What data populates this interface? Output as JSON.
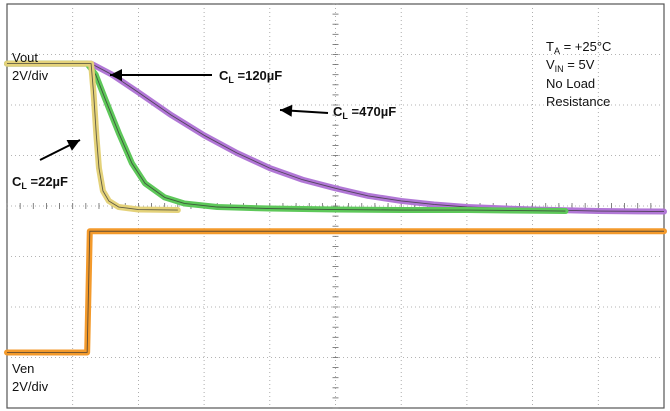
{
  "chart_data": {
    "type": "line",
    "xlim": [
      0,
      10
    ],
    "ylim": [
      0,
      8
    ],
    "grid": true,
    "series": [
      {
        "name": "CL=22µF",
        "color": "#e4d27a",
        "points": [
          [
            0,
            6.82
          ],
          [
            1.28,
            6.82
          ],
          [
            1.32,
            6.2
          ],
          [
            1.36,
            5.4
          ],
          [
            1.4,
            4.75
          ],
          [
            1.46,
            4.3
          ],
          [
            1.55,
            4.1
          ],
          [
            1.7,
            3.98
          ],
          [
            2.0,
            3.93
          ],
          [
            2.6,
            3.92
          ]
        ]
      },
      {
        "name": "CL=120µF",
        "color": "#5ec85a",
        "points": [
          [
            0,
            6.82
          ],
          [
            1.22,
            6.82
          ],
          [
            1.35,
            6.6
          ],
          [
            1.5,
            6.1
          ],
          [
            1.7,
            5.45
          ],
          [
            1.9,
            4.85
          ],
          [
            2.1,
            4.45
          ],
          [
            2.4,
            4.17
          ],
          [
            2.7,
            4.05
          ],
          [
            3.2,
            3.98
          ],
          [
            4.0,
            3.95
          ],
          [
            5.0,
            3.93
          ],
          [
            6.0,
            3.92
          ],
          [
            7.0,
            3.92
          ],
          [
            8.5,
            3.9
          ]
        ]
      },
      {
        "name": "CL=470µF",
        "color": "#b177d6",
        "points": [
          [
            0,
            6.82
          ],
          [
            1.28,
            6.82
          ],
          [
            1.6,
            6.6
          ],
          [
            2.0,
            6.25
          ],
          [
            2.5,
            5.8
          ],
          [
            3.0,
            5.4
          ],
          [
            3.5,
            5.05
          ],
          [
            4.0,
            4.75
          ],
          [
            4.5,
            4.52
          ],
          [
            5.0,
            4.35
          ],
          [
            5.5,
            4.2
          ],
          [
            6.0,
            4.1
          ],
          [
            6.5,
            4.03
          ],
          [
            7.0,
            3.98
          ],
          [
            8.0,
            3.93
          ],
          [
            9.0,
            3.9
          ],
          [
            10,
            3.89
          ]
        ]
      },
      {
        "name": "Ven",
        "color": "#f39a2c",
        "points": [
          [
            0,
            1.1
          ],
          [
            1.22,
            1.1
          ],
          [
            1.26,
            3.5
          ],
          [
            10,
            3.5
          ]
        ]
      }
    ]
  },
  "labels": {
    "vout": [
      "Vout",
      "2V/div"
    ],
    "ven": [
      "Ven",
      "2V/div"
    ],
    "cl22": {
      "prefix": "C",
      "sub": "L",
      "rest": " =22µF"
    },
    "cl120": {
      "prefix": "C",
      "sub": "L",
      "rest": " =120µF"
    },
    "cl470": {
      "prefix": "C",
      "sub": "L",
      "rest": " =470µF"
    },
    "conditions": [
      {
        "prefix": "T",
        "sub": "A",
        "rest": " = +25°C"
      },
      {
        "prefix": "V",
        "sub": "IN",
        "rest": " = 5V"
      },
      {
        "prefix": "No Load",
        "sub": "",
        "rest": ""
      },
      {
        "prefix": "Resistance",
        "sub": "",
        "rest": ""
      }
    ]
  }
}
